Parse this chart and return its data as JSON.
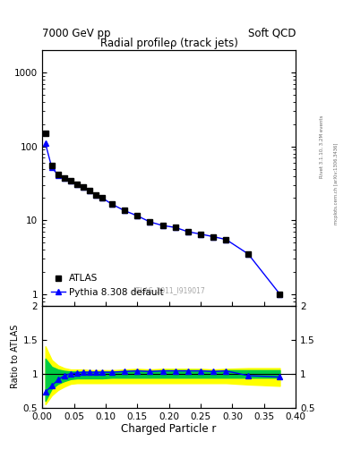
{
  "title_main": "Radial profileρ (track jets)",
  "top_left_label": "7000 GeV pp",
  "top_right_label": "Soft QCD",
  "right_label_rivet": "Rivet 3.1.10, 3.2M events",
  "right_label_arxiv": "mcplots.cern.ch [arXiv:1306.3436]",
  "watermark": "ATLAS_2011_I919017",
  "xlabel": "Charged Particle r",
  "ylabel_ratio": "Ratio to ATLAS",
  "atlas_x": [
    0.005,
    0.015,
    0.025,
    0.035,
    0.045,
    0.055,
    0.065,
    0.075,
    0.085,
    0.095,
    0.11,
    0.13,
    0.15,
    0.17,
    0.19,
    0.21,
    0.23,
    0.25,
    0.27,
    0.29,
    0.325,
    0.375
  ],
  "atlas_y": [
    150.0,
    55.0,
    42.0,
    37.0,
    34.0,
    31.0,
    28.0,
    25.0,
    22.0,
    20.0,
    16.5,
    13.5,
    11.5,
    9.5,
    8.5,
    8.0,
    7.0,
    6.5,
    6.0,
    5.5,
    3.5,
    1.0
  ],
  "pythia_x": [
    0.005,
    0.015,
    0.025,
    0.035,
    0.045,
    0.055,
    0.065,
    0.075,
    0.085,
    0.095,
    0.11,
    0.13,
    0.15,
    0.17,
    0.19,
    0.21,
    0.23,
    0.25,
    0.27,
    0.29,
    0.325,
    0.375
  ],
  "pythia_y": [
    110.0,
    52.0,
    41.0,
    37.0,
    34.0,
    31.0,
    28.0,
    25.0,
    22.0,
    20.0,
    16.5,
    13.5,
    11.5,
    9.5,
    8.5,
    8.0,
    7.0,
    6.5,
    6.0,
    5.5,
    3.5,
    1.0
  ],
  "ratio_y": [
    0.73,
    0.82,
    0.91,
    0.97,
    1.0,
    1.01,
    1.02,
    1.02,
    1.02,
    1.02,
    1.02,
    1.03,
    1.04,
    1.03,
    1.04,
    1.04,
    1.04,
    1.04,
    1.03,
    1.04,
    0.97,
    0.95
  ],
  "green_band_upper": [
    1.22,
    1.1,
    1.06,
    1.04,
    1.03,
    1.03,
    1.03,
    1.03,
    1.03,
    1.03,
    1.03,
    1.04,
    1.05,
    1.04,
    1.05,
    1.05,
    1.05,
    1.05,
    1.04,
    1.05,
    1.05,
    1.05
  ],
  "green_band_lower": [
    0.6,
    0.78,
    0.85,
    0.89,
    0.92,
    0.93,
    0.93,
    0.93,
    0.93,
    0.93,
    0.94,
    0.94,
    0.94,
    0.94,
    0.94,
    0.94,
    0.94,
    0.94,
    0.94,
    0.94,
    0.94,
    0.94
  ],
  "yellow_band_upper": [
    1.4,
    1.2,
    1.12,
    1.08,
    1.06,
    1.06,
    1.06,
    1.05,
    1.05,
    1.05,
    1.05,
    1.06,
    1.07,
    1.06,
    1.07,
    1.07,
    1.07,
    1.07,
    1.06,
    1.07,
    1.08,
    1.08
  ],
  "yellow_band_lower": [
    0.55,
    0.68,
    0.76,
    0.81,
    0.85,
    0.86,
    0.86,
    0.86,
    0.86,
    0.86,
    0.86,
    0.86,
    0.86,
    0.86,
    0.86,
    0.86,
    0.86,
    0.86,
    0.86,
    0.86,
    0.84,
    0.82
  ],
  "xlim": [
    0.0,
    0.4
  ],
  "ylim_main": [
    0.7,
    2000.0
  ],
  "ylim_ratio": [
    0.5,
    2.0
  ],
  "color_atlas": "black",
  "color_pythia": "blue",
  "color_green": "#00cc44",
  "color_yellow": "#ffff00",
  "legend_atlas": "ATLAS",
  "legend_pythia": "Pythia 8.308 default",
  "bg_color": "white"
}
